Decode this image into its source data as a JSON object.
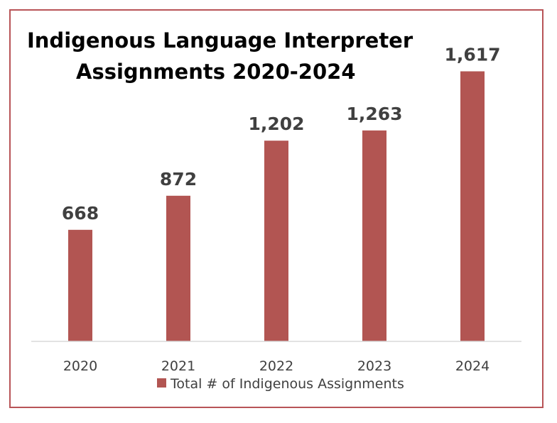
{
  "chart_data": {
    "type": "bar",
    "title_lines": [
      "Indigenous Language Interpreter",
      "Assignments 2020-2024"
    ],
    "categories": [
      "2020",
      "2021",
      "2022",
      "2023",
      "2024"
    ],
    "series": [
      {
        "name": "Total # of Indigenous Assignments",
        "values": [
          668,
          872,
          1202,
          1263,
          1617
        ],
        "labels": [
          "668",
          "872",
          "1,202",
          "1,263",
          "1,617"
        ]
      }
    ],
    "ylim": [
      0,
      1700
    ],
    "grid": false,
    "legend_position": "bottom",
    "bar_color": "#b25552",
    "axis_color": "#d9d9d9",
    "border_color": "#b85457"
  }
}
